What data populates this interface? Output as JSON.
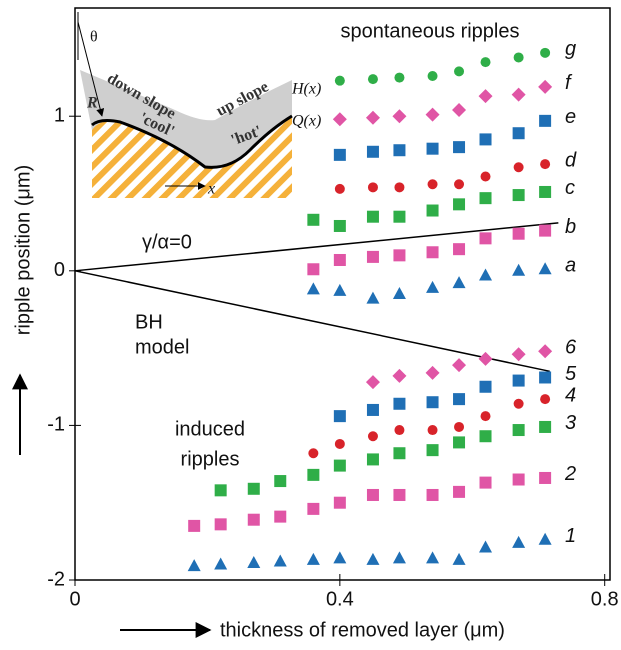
{
  "chart_data": {
    "type": "scatter",
    "x_label": "thickness of removed layer (μm)",
    "y_label": "ripple position (μm)",
    "xlim": [
      0,
      0.808
    ],
    "ylim": [
      -2,
      1.7
    ],
    "xticks": [
      0,
      0.4,
      0.8
    ],
    "yticks": [
      -2,
      -1,
      0,
      1
    ],
    "annotations": [
      {
        "lines": [
          "spontaneous ripples"
        ]
      },
      {
        "lines": [
          "induced",
          "ripples"
        ]
      }
    ],
    "lines": [
      {
        "name_lines": [
          "γ/α=0"
        ],
        "x": [
          0,
          0.73
        ],
        "values": [
          0,
          0.31
        ]
      },
      {
        "name_lines": [
          "BH",
          "model"
        ],
        "x": [
          0,
          0.717
        ],
        "values": [
          0,
          -0.65
        ]
      }
    ],
    "series": [
      {
        "name": "g",
        "marker": "circle",
        "color": "#2fae48",
        "x": [
          0.4,
          0.45,
          0.49,
          0.54,
          0.58,
          0.62,
          0.67,
          0.71
        ],
        "values": [
          1.23,
          1.24,
          1.25,
          1.26,
          1.29,
          1.35,
          1.38,
          1.41
        ]
      },
      {
        "name": "f",
        "marker": "diamond",
        "color": "#e055a5",
        "x": [
          0.4,
          0.45,
          0.49,
          0.54,
          0.58,
          0.62,
          0.67,
          0.71
        ],
        "values": [
          0.98,
          0.99,
          1.0,
          1.01,
          1.04,
          1.13,
          1.14,
          1.19
        ]
      },
      {
        "name": "e",
        "marker": "square",
        "color": "#1f6fb5",
        "x": [
          0.4,
          0.45,
          0.49,
          0.54,
          0.58,
          0.62,
          0.67,
          0.71
        ],
        "values": [
          0.75,
          0.77,
          0.78,
          0.79,
          0.8,
          0.85,
          0.89,
          0.97
        ]
      },
      {
        "name": "d",
        "marker": "circle",
        "color": "#d8232a",
        "x": [
          0.4,
          0.45,
          0.49,
          0.54,
          0.58,
          0.62,
          0.67,
          0.71
        ],
        "values": [
          0.53,
          0.54,
          0.54,
          0.56,
          0.56,
          0.61,
          0.67,
          0.69
        ]
      },
      {
        "name": "c",
        "marker": "square",
        "color": "#2fae48",
        "x": [
          0.36,
          0.4,
          0.45,
          0.49,
          0.54,
          0.58,
          0.62,
          0.67,
          0.71
        ],
        "values": [
          0.33,
          0.29,
          0.35,
          0.35,
          0.39,
          0.43,
          0.47,
          0.49,
          0.51
        ]
      },
      {
        "name": "b",
        "marker": "square",
        "color": "#e055a5",
        "x": [
          0.36,
          0.4,
          0.45,
          0.49,
          0.54,
          0.58,
          0.62,
          0.67,
          0.71
        ],
        "values": [
          0.01,
          0.07,
          0.09,
          0.1,
          0.12,
          0.14,
          0.21,
          0.24,
          0.26
        ]
      },
      {
        "name": "a",
        "marker": "triangle",
        "color": "#1f6fb5",
        "x": [
          0.36,
          0.4,
          0.45,
          0.49,
          0.54,
          0.58,
          0.62,
          0.67,
          0.71
        ],
        "values": [
          -0.12,
          -0.13,
          -0.18,
          -0.15,
          -0.11,
          -0.08,
          -0.03,
          0,
          0.01
        ]
      },
      {
        "name": "6",
        "marker": "diamond",
        "color": "#e055a5",
        "x": [
          0.45,
          0.49,
          0.54,
          0.58,
          0.62,
          0.67,
          0.71
        ],
        "values": [
          -0.72,
          -0.68,
          -0.66,
          -0.61,
          -0.57,
          -0.54,
          -0.52
        ]
      },
      {
        "name": "5",
        "marker": "square",
        "color": "#1f6fb5",
        "x": [
          0.4,
          0.45,
          0.49,
          0.54,
          0.58,
          0.62,
          0.67,
          0.71
        ],
        "values": [
          -0.94,
          -0.9,
          -0.86,
          -0.85,
          -0.83,
          -0.75,
          -0.71,
          -0.69
        ]
      },
      {
        "name": "4",
        "marker": "circle",
        "color": "#d8232a",
        "x": [
          0.36,
          0.4,
          0.45,
          0.49,
          0.54,
          0.58,
          0.62,
          0.67,
          0.71
        ],
        "values": [
          -1.18,
          -1.12,
          -1.07,
          -1.03,
          -1.03,
          -1.01,
          -0.94,
          -0.86,
          -0.83
        ]
      },
      {
        "name": "3",
        "marker": "square",
        "color": "#2fae48",
        "x": [
          0.22,
          0.27,
          0.31,
          0.36,
          0.4,
          0.45,
          0.49,
          0.54,
          0.58,
          0.62,
          0.67,
          0.71
        ],
        "values": [
          -1.42,
          -1.41,
          -1.36,
          -1.32,
          -1.26,
          -1.22,
          -1.18,
          -1.16,
          -1.11,
          -1.07,
          -1.03,
          -1.01
        ]
      },
      {
        "name": "2",
        "marker": "square",
        "color": "#e055a5",
        "x": [
          0.18,
          0.22,
          0.27,
          0.31,
          0.36,
          0.4,
          0.45,
          0.49,
          0.54,
          0.58,
          0.62,
          0.67,
          0.71
        ],
        "values": [
          -1.65,
          -1.64,
          -1.61,
          -1.59,
          -1.54,
          -1.5,
          -1.45,
          -1.45,
          -1.45,
          -1.43,
          -1.37,
          -1.35,
          -1.34
        ]
      },
      {
        "name": "1",
        "marker": "triangle",
        "color": "#1f6fb5",
        "x": [
          0.18,
          0.22,
          0.27,
          0.31,
          0.36,
          0.4,
          0.45,
          0.49,
          0.54,
          0.58,
          0.62,
          0.67,
          0.71
        ],
        "values": [
          -1.91,
          -1.9,
          -1.89,
          -1.88,
          -1.87,
          -1.86,
          -1.87,
          -1.86,
          -1.86,
          -1.87,
          -1.79,
          -1.76,
          -1.74
        ]
      }
    ],
    "inset": {
      "theta": "θ",
      "R": "R",
      "down_slope": "down slope",
      "cool": "'cool'",
      "up_slope": "up slope",
      "hot": "'hot'",
      "H": "H(x)",
      "Q": "Q(x)",
      "x": "x"
    }
  }
}
